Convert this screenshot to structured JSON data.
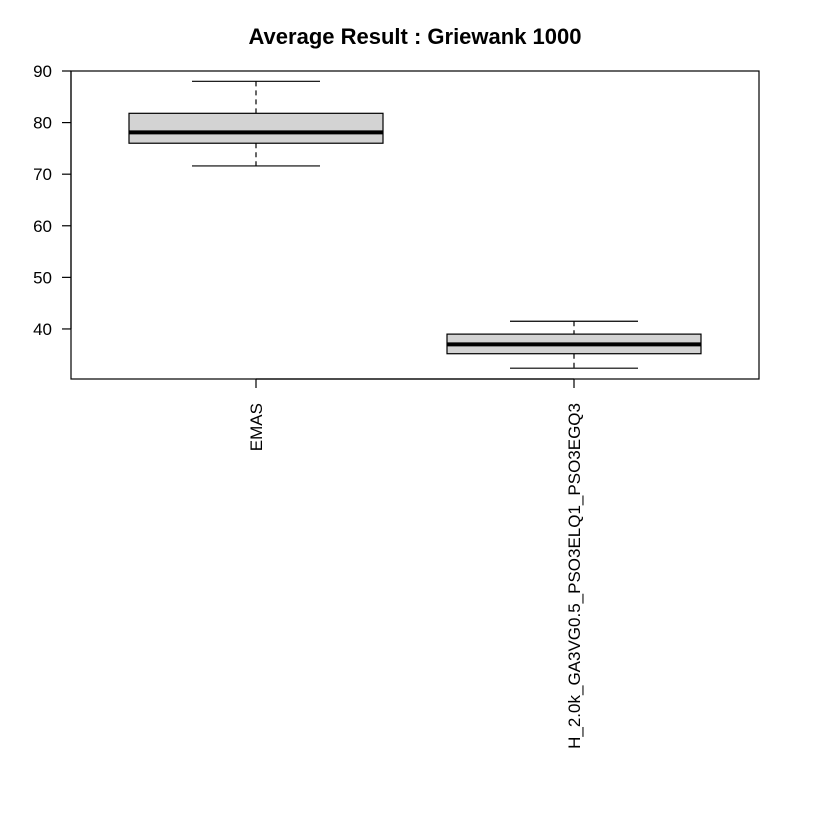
{
  "chart_data": {
    "type": "box",
    "title": "Average Result : Griewank 1000",
    "xlabel": "",
    "ylabel": "",
    "ylim": [
      30.3,
      90
    ],
    "yticks": [
      40,
      50,
      60,
      70,
      80,
      90
    ],
    "grid": false,
    "categories": [
      "EMAS",
      "H_2.0k_GA3VG0.5_PSO3ELQ1_PSO3EGQ3"
    ],
    "boxes": [
      {
        "min": 71.6,
        "q1": 76.0,
        "median": 78.1,
        "q3": 81.8,
        "max": 88.0
      },
      {
        "min": 32.4,
        "q1": 35.2,
        "median": 37.0,
        "q3": 39.0,
        "max": 41.5
      }
    ],
    "colors": {
      "box_fill": "#d3d3d3",
      "stroke": "#000000",
      "background": "#ffffff"
    }
  }
}
